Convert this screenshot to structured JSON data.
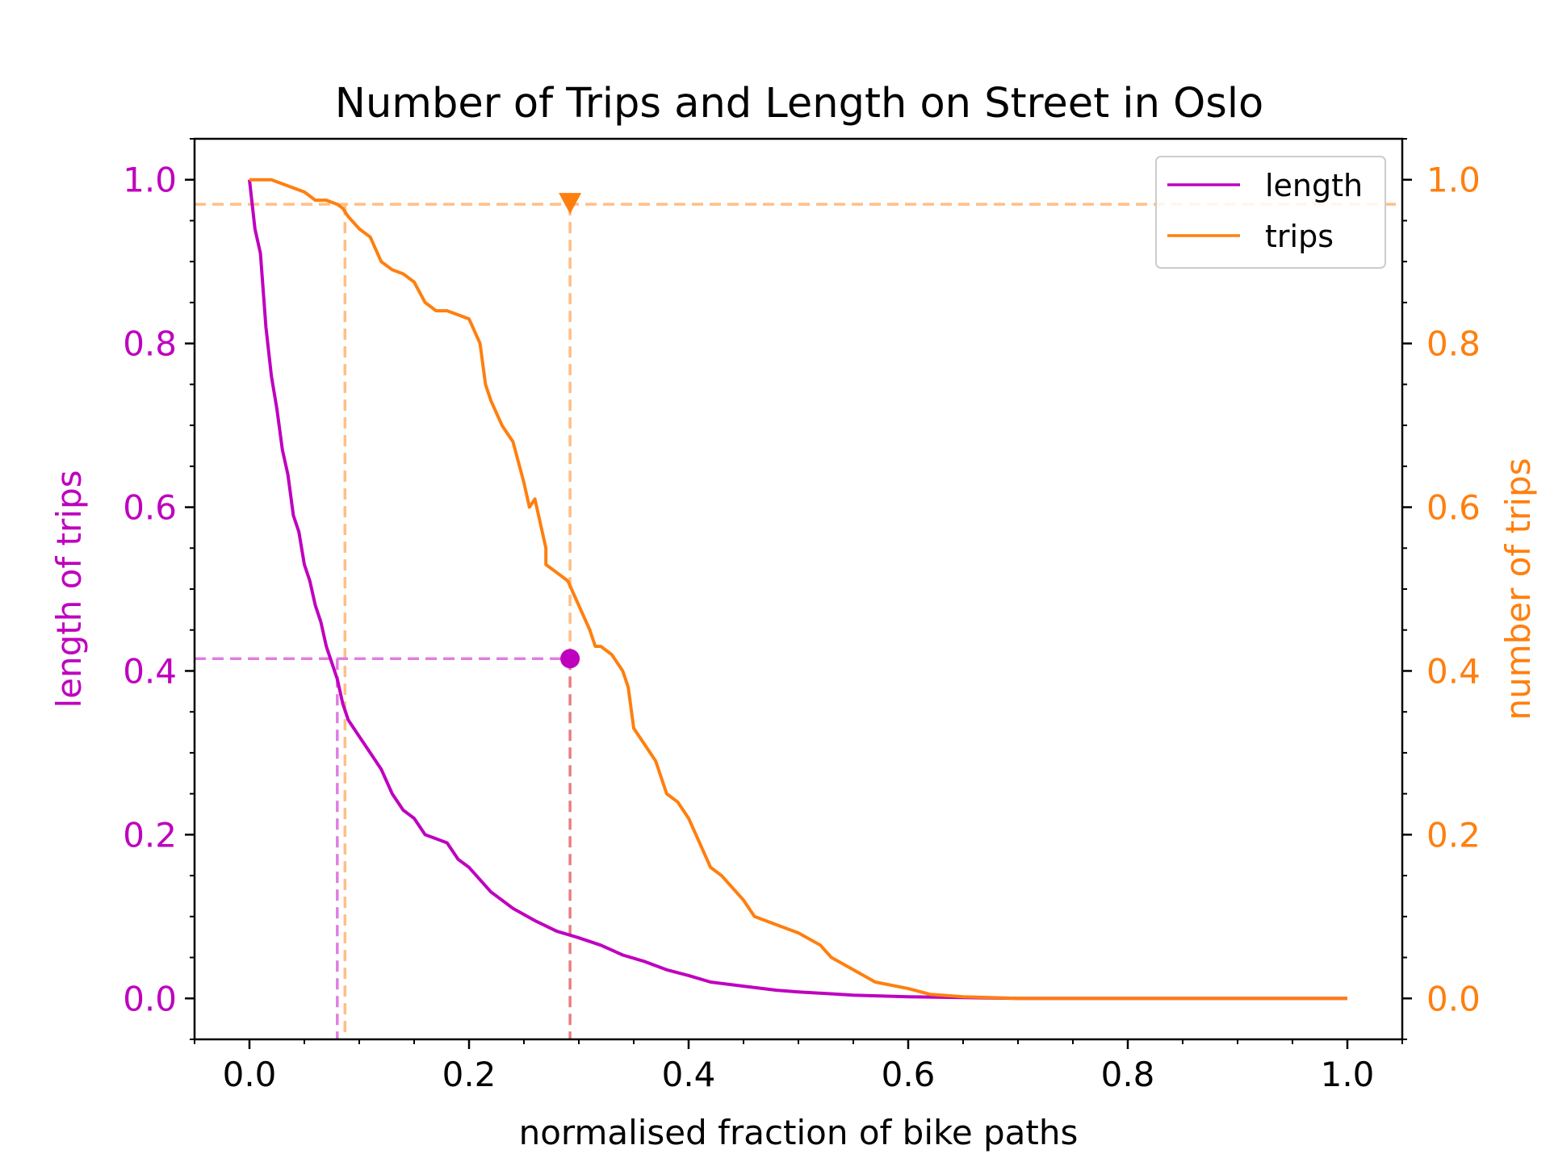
{
  "chart_data": {
    "type": "line",
    "title": "Number of Trips and Length on Street in Oslo",
    "xlabel": "normalised fraction of bike paths",
    "ylabel_left": "length of trips",
    "ylabel_right": "number of trips",
    "xlim": [
      -0.05,
      1.05
    ],
    "ylim_left": [
      -0.05,
      1.05
    ],
    "ylim_right": [
      -0.05,
      1.05
    ],
    "x_ticks": [
      0.0,
      0.2,
      0.4,
      0.6,
      0.8,
      1.0
    ],
    "x_tick_labels": [
      "0.0",
      "0.2",
      "0.4",
      "0.6",
      "0.8",
      "1.0"
    ],
    "y_ticks": [
      0.0,
      0.2,
      0.4,
      0.6,
      0.8,
      1.0
    ],
    "y_tick_labels": [
      "0.0",
      "0.2",
      "0.4",
      "0.6",
      "0.8",
      "1.0"
    ],
    "grid": false,
    "legend_position": "top-right",
    "colors": {
      "length": "#bf00bf",
      "trips": "#ff7f0e",
      "ref_length": "#e07fe0",
      "ref_trips": "#ffbf86",
      "ref_marker": "#e88080"
    },
    "series": [
      {
        "name": "length",
        "axis": "left",
        "x": [
          0.0,
          0.005,
          0.01,
          0.015,
          0.02,
          0.025,
          0.03,
          0.035,
          0.04,
          0.045,
          0.05,
          0.055,
          0.06,
          0.065,
          0.07,
          0.075,
          0.08,
          0.085,
          0.09,
          0.1,
          0.11,
          0.12,
          0.13,
          0.14,
          0.15,
          0.16,
          0.17,
          0.18,
          0.19,
          0.2,
          0.22,
          0.24,
          0.26,
          0.28,
          0.29,
          0.3,
          0.32,
          0.34,
          0.36,
          0.38,
          0.4,
          0.42,
          0.45,
          0.48,
          0.5,
          0.55,
          0.6,
          0.65,
          0.7,
          0.8,
          0.9,
          1.0
        ],
        "y": [
          1.0,
          0.94,
          0.91,
          0.82,
          0.76,
          0.72,
          0.67,
          0.64,
          0.59,
          0.57,
          0.53,
          0.51,
          0.48,
          0.46,
          0.43,
          0.41,
          0.39,
          0.36,
          0.34,
          0.32,
          0.3,
          0.28,
          0.25,
          0.23,
          0.22,
          0.2,
          0.195,
          0.19,
          0.17,
          0.16,
          0.13,
          0.11,
          0.095,
          0.082,
          0.078,
          0.074,
          0.065,
          0.053,
          0.045,
          0.035,
          0.028,
          0.02,
          0.015,
          0.01,
          0.008,
          0.004,
          0.002,
          0.001,
          0.0,
          0.0,
          0.0,
          0.0
        ]
      },
      {
        "name": "trips",
        "axis": "right",
        "x": [
          0.0,
          0.02,
          0.04,
          0.05,
          0.06,
          0.07,
          0.08,
          0.085,
          0.09,
          0.1,
          0.11,
          0.12,
          0.13,
          0.14,
          0.15,
          0.16,
          0.17,
          0.18,
          0.19,
          0.2,
          0.21,
          0.215,
          0.22,
          0.23,
          0.24,
          0.25,
          0.255,
          0.26,
          0.27,
          0.27,
          0.28,
          0.29,
          0.3,
          0.31,
          0.315,
          0.32,
          0.33,
          0.34,
          0.345,
          0.35,
          0.36,
          0.37,
          0.38,
          0.39,
          0.4,
          0.41,
          0.42,
          0.43,
          0.45,
          0.46,
          0.48,
          0.5,
          0.52,
          0.53,
          0.55,
          0.57,
          0.6,
          0.62,
          0.65,
          0.7,
          0.8,
          0.9,
          1.0
        ],
        "y": [
          1.0,
          1.0,
          0.99,
          0.985,
          0.975,
          0.975,
          0.97,
          0.965,
          0.955,
          0.94,
          0.93,
          0.9,
          0.89,
          0.885,
          0.875,
          0.85,
          0.84,
          0.84,
          0.835,
          0.83,
          0.8,
          0.75,
          0.73,
          0.7,
          0.68,
          0.63,
          0.6,
          0.61,
          0.55,
          0.53,
          0.52,
          0.51,
          0.48,
          0.45,
          0.43,
          0.43,
          0.42,
          0.4,
          0.38,
          0.33,
          0.31,
          0.29,
          0.25,
          0.24,
          0.22,
          0.19,
          0.16,
          0.15,
          0.12,
          0.1,
          0.09,
          0.08,
          0.065,
          0.05,
          0.035,
          0.02,
          0.012,
          0.005,
          0.002,
          0.0,
          0.0,
          0.0,
          0.0
        ]
      }
    ],
    "reference_lines": {
      "trips_level": 0.97,
      "trips_x": 0.087,
      "length_level": 0.415,
      "length_x": 0.08,
      "marker_x": 0.292
    },
    "legend": {
      "entries": [
        "length",
        "trips"
      ]
    }
  }
}
